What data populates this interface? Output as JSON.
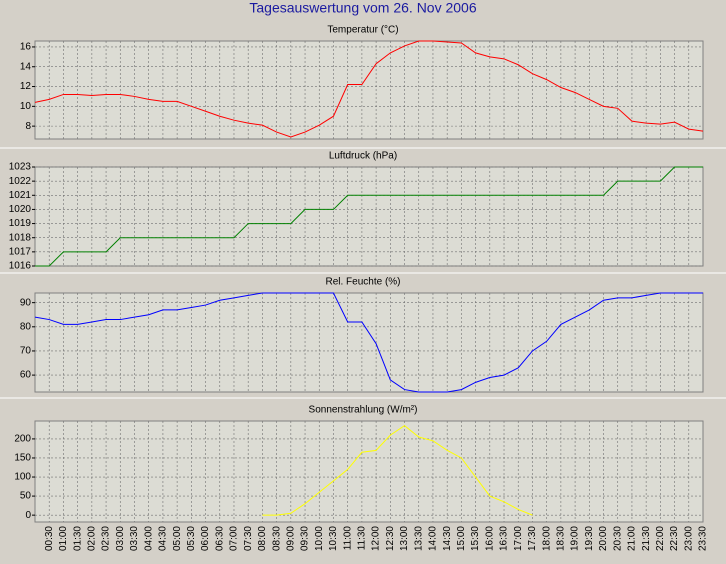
{
  "title": "Tagesauswertung vom 26. Nov 2006",
  "chart_data": [
    {
      "type": "line",
      "title": "Temperatur (°C)",
      "color": "#ff0000",
      "ylim": [
        6.7,
        16.6
      ],
      "yticks": [
        8,
        10,
        12,
        14,
        16
      ],
      "grid": true,
      "values": [
        10.4,
        10.7,
        11.2,
        11.2,
        11.1,
        11.2,
        11.2,
        11.0,
        10.7,
        10.5,
        10.5,
        10.0,
        9.5,
        9.0,
        8.6,
        8.3,
        8.1,
        7.4,
        6.9,
        7.4,
        8.1,
        9.0,
        12.2,
        12.2,
        14.3,
        15.4,
        16.1,
        16.6,
        16.6,
        16.5,
        16.4,
        15.4,
        15.0,
        14.8,
        14.2,
        13.3,
        12.7,
        11.9,
        11.4,
        10.7,
        10.0,
        9.8,
        8.5,
        8.3,
        8.2,
        8.4,
        7.7,
        7.5
      ]
    },
    {
      "type": "line",
      "title": "Luftdruck (hPa)",
      "color": "#008000",
      "ylim": [
        1016,
        1023
      ],
      "yticks": [
        1016,
        1017,
        1018,
        1019,
        1020,
        1021,
        1022,
        1023
      ],
      "grid": true,
      "values": [
        1016,
        1016,
        1017,
        1017,
        1017,
        1017,
        1018,
        1018,
        1018,
        1018,
        1018,
        1018,
        1018,
        1018,
        1018,
        1019,
        1019,
        1019,
        1019,
        1020,
        1020,
        1020,
        1021,
        1021,
        1021,
        1021,
        1021,
        1021,
        1021,
        1021,
        1021,
        1021,
        1021,
        1021,
        1021,
        1021,
        1021,
        1021,
        1021,
        1021,
        1021,
        1022,
        1022,
        1022,
        1022,
        1023,
        1023,
        1023
      ]
    },
    {
      "type": "line",
      "title": "Rel. Feuchte (%)",
      "color": "#0000ff",
      "ylim": [
        53,
        94
      ],
      "yticks": [
        60,
        70,
        80,
        90
      ],
      "grid": true,
      "values": [
        84,
        83,
        81,
        81,
        82,
        83,
        83,
        84,
        85,
        87,
        87,
        88,
        89,
        91,
        92,
        93,
        94,
        94,
        94,
        94,
        94,
        94,
        82,
        82,
        73,
        58,
        54,
        53,
        53,
        53,
        54,
        57,
        59,
        60,
        63,
        70,
        74,
        81,
        84,
        87,
        91,
        92,
        92,
        93,
        94,
        94,
        94,
        94
      ]
    },
    {
      "type": "line",
      "title": "Sonnenstrahlung (W/m²)",
      "color": "#ffff00",
      "ylim": [
        -18,
        247
      ],
      "yticks": [
        0,
        50,
        100,
        150,
        200
      ],
      "grid": true,
      "categories": [
        null,
        "00:30",
        "01:00",
        "01:30",
        "02:00",
        "02:30",
        "03:00",
        "03:30",
        "04:00",
        "04:30",
        "05:00",
        "05:30",
        "06:00",
        "06:30",
        "07:00",
        "07:30",
        "08:00",
        "08:30",
        "09:00",
        "09:30",
        "10:00",
        "10:30",
        "11:00",
        "11:30",
        "12:00",
        "12:30",
        "13:00",
        "13:30",
        "14:00",
        "14:30",
        "15:00",
        "15:30",
        "16:00",
        "16:30",
        "17:00",
        "17:30",
        "18:00",
        "18:30",
        "19:00",
        "19:30",
        "20:00",
        "20:30",
        "21:00",
        "21:30",
        "22:00",
        "22:30",
        "23:00",
        "23:30"
      ],
      "values": [
        null,
        null,
        null,
        null,
        null,
        null,
        null,
        null,
        null,
        null,
        null,
        null,
        null,
        null,
        null,
        null,
        0,
        0,
        5,
        30,
        60,
        90,
        120,
        165,
        170,
        210,
        235,
        205,
        195,
        170,
        150,
        100,
        50,
        35,
        15,
        0,
        null,
        null,
        null,
        null,
        null,
        null,
        null,
        null,
        null,
        null,
        null,
        null
      ]
    }
  ]
}
